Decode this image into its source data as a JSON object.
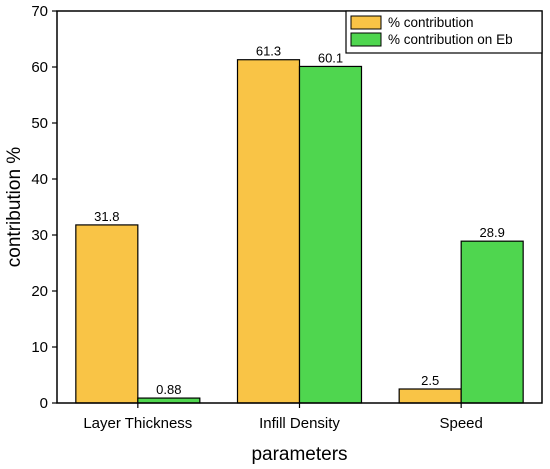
{
  "chart_data": {
    "type": "bar",
    "categories": [
      "Layer Thickness",
      "Infill Density",
      "Speed"
    ],
    "series": [
      {
        "name": "% contribution",
        "values": [
          31.8,
          61.3,
          2.5
        ],
        "color": "#F9C446"
      },
      {
        "name": "% contribution on Eb",
        "values": [
          0.88,
          60.1,
          28.9
        ],
        "color": "#4FD64F"
      }
    ],
    "data_labels": [
      [
        "31.8",
        "61.3",
        "2.5"
      ],
      [
        "0.88",
        "60.1",
        "28.9"
      ]
    ],
    "xlabel": "parameters",
    "ylabel": "contribution %",
    "ylim": [
      0,
      70
    ],
    "yticks": [
      0,
      10,
      20,
      30,
      40,
      50,
      60,
      70
    ],
    "grid": false,
    "legend_position": "top-right"
  }
}
